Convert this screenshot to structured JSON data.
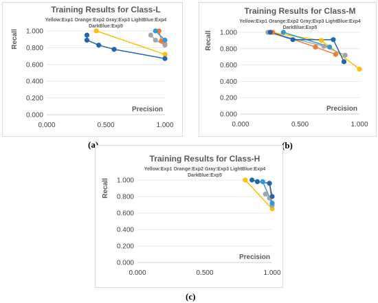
{
  "chart_data": [
    {
      "type": "scatter",
      "caption": "(a)",
      "title": "Training Results for Class-L",
      "subtitle_line1": "Yellow:Exp1 Orange:Exp2 Gray:Exp3 LightBlue:Exp4",
      "subtitle_line2": "DarkBlue:Exp5",
      "xlabel": "Precision",
      "ylabel": "Recall",
      "xlim": [
        0,
        1
      ],
      "ylim": [
        0,
        1
      ],
      "x_ticks": [
        "0.000",
        "0.500",
        "1.000"
      ],
      "y_ticks": [
        "0.000",
        "0.200",
        "0.400",
        "0.600",
        "0.800",
        "1.000"
      ],
      "series": [
        {
          "name": "Exp1",
          "color": "#FFC000",
          "points": [
            [
              0.42,
              1.0
            ],
            [
              1.0,
              0.72
            ]
          ]
        },
        {
          "name": "Exp2",
          "color": "#ED7D31",
          "points": [
            [
              0.95,
              1.0
            ],
            [
              0.97,
              0.88
            ],
            [
              1.0,
              0.84
            ]
          ]
        },
        {
          "name": "Exp3",
          "color": "#A5A5A5",
          "points": [
            [
              0.88,
              0.95
            ],
            [
              0.92,
              0.89
            ],
            [
              1.0,
              0.83
            ]
          ]
        },
        {
          "name": "Exp4",
          "color": "#2E9AD8",
          "points": [
            [
              0.92,
              1.0
            ],
            [
              1.0,
              0.89
            ]
          ]
        },
        {
          "name": "Exp5",
          "color": "#1F65B0",
          "points": [
            [
              0.34,
              0.95
            ],
            [
              0.34,
              0.89
            ],
            [
              0.44,
              0.83
            ],
            [
              0.57,
              0.78
            ],
            [
              1.0,
              0.67
            ]
          ]
        }
      ]
    },
    {
      "type": "scatter",
      "caption": "(b)",
      "title": "Training Results for Class-M",
      "subtitle_line1": "Yellow:Exp1 Orange:Exp2 Gray:Exp3 LightBlue:Exp4",
      "subtitle_line2": "DarkBlue:Exp5",
      "xlabel": "Precision",
      "ylabel": "Recall",
      "xlim": [
        0,
        1
      ],
      "ylim": [
        0,
        1
      ],
      "x_ticks": [
        "0.000",
        "0.500",
        "1.000"
      ],
      "y_ticks": [
        "0.000",
        "0.200",
        "0.400",
        "0.600",
        "0.800",
        "1.000"
      ],
      "series": [
        {
          "name": "Exp1",
          "color": "#FFC000",
          "points": [
            [
              0.25,
              1.0
            ],
            [
              0.68,
              0.9
            ],
            [
              1.0,
              0.55
            ]
          ]
        },
        {
          "name": "Exp2",
          "color": "#ED7D31",
          "points": [
            [
              0.27,
              1.0
            ],
            [
              0.63,
              0.82
            ],
            [
              0.8,
              0.73
            ]
          ]
        },
        {
          "name": "Exp3",
          "color": "#A5A5A5",
          "points": [
            [
              0.23,
              1.0
            ],
            [
              0.7,
              0.83
            ],
            [
              0.88,
              0.72
            ]
          ]
        },
        {
          "name": "Exp4",
          "color": "#2E9AD8",
          "points": [
            [
              0.36,
              1.0
            ],
            [
              0.75,
              0.82
            ]
          ]
        },
        {
          "name": "Exp5",
          "color": "#1F65B0",
          "points": [
            [
              0.25,
              1.0
            ],
            [
              0.44,
              0.91
            ],
            [
              0.78,
              0.91
            ],
            [
              0.87,
              0.64
            ]
          ]
        }
      ]
    },
    {
      "type": "scatter",
      "caption": "(c)",
      "title": "Training Results for Class-H",
      "subtitle_line1": "Yellow:Exp1 Orange:Exp2 Gray:Exp3 LightBlue:Exp4",
      "subtitle_line2": "DarkBlue:Exp5",
      "xlabel": "Precision",
      "ylabel": "Recall",
      "xlim": [
        0,
        1
      ],
      "ylim": [
        0,
        1
      ],
      "x_ticks": [
        "0.000",
        "0.500",
        "1.000"
      ],
      "y_ticks": [
        "0.000",
        "0.200",
        "0.400",
        "0.600",
        "0.800",
        "1.000"
      ],
      "series": [
        {
          "name": "Exp1",
          "color": "#FFC000",
          "points": [
            [
              0.8,
              1.0
            ],
            [
              1.0,
              0.65
            ]
          ]
        },
        {
          "name": "Exp2",
          "color": "#ED7D31",
          "points": [
            [
              0.98,
              0.96
            ],
            [
              1.0,
              0.7
            ]
          ]
        },
        {
          "name": "Exp3",
          "color": "#A5A5A5",
          "points": [
            [
              0.95,
              0.83
            ],
            [
              0.98,
              0.78
            ],
            [
              1.0,
              0.69
            ]
          ]
        },
        {
          "name": "Exp4",
          "color": "#2E9AD8",
          "points": [
            [
              0.93,
              0.98
            ],
            [
              1.0,
              0.72
            ]
          ]
        },
        {
          "name": "Exp5",
          "color": "#1F65B0",
          "points": [
            [
              0.85,
              1.0
            ],
            [
              0.89,
              0.98
            ],
            [
              0.98,
              0.96
            ],
            [
              1.0,
              0.8
            ]
          ]
        }
      ]
    }
  ]
}
